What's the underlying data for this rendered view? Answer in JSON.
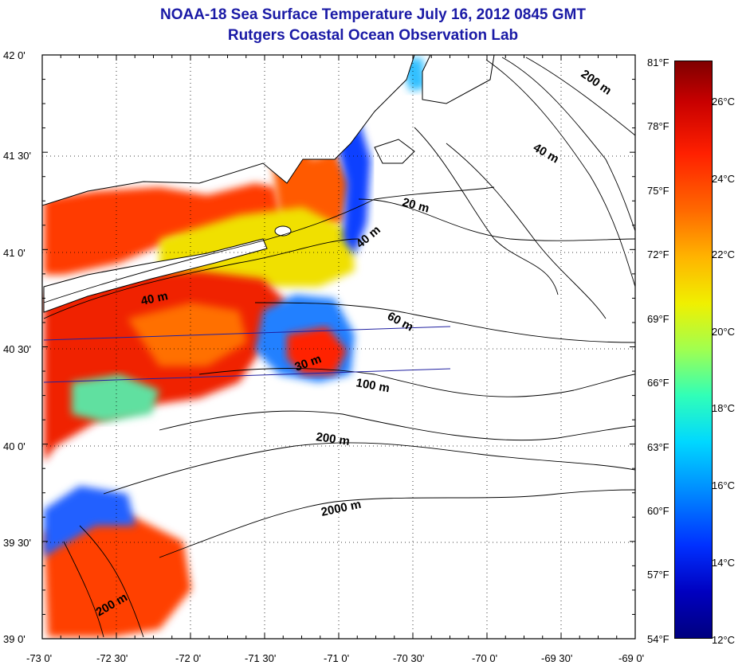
{
  "title": "NOAA-18 Sea Surface Temperature July 16, 2012 0845 GMT",
  "subtitle": "Rutgers Coastal Ocean Observation Lab",
  "lat_labels": [
    "42 0'",
    "41 30'",
    "41 0'",
    "40 30'",
    "40 0'",
    "39 30'",
    "39 0'"
  ],
  "lon_labels": [
    "-73 0'",
    "-72 30'",
    "-72 0'",
    "-71 30'",
    "-71 0'",
    "-70 30'",
    "-70 0'",
    "-69 30'",
    "-69 0'"
  ],
  "fahrenheit_labels": [
    "81°F",
    "78°F",
    "75°F",
    "72°F",
    "69°F",
    "66°F",
    "63°F",
    "60°F",
    "57°F",
    "54°F"
  ],
  "celsius_labels": [
    "26°C",
    "24°C",
    "22°C",
    "20°C",
    "18°C",
    "16°C",
    "14°C",
    "12°C"
  ],
  "contour_labels": [
    "200 m",
    "40 m",
    "20 m",
    "40 m",
    "40 m",
    "60 m",
    "30 m",
    "100 m",
    "200 m",
    "2000 m",
    "200 m"
  ],
  "extent": {
    "lon": [
      -73,
      -69
    ],
    "lat": [
      39,
      42
    ]
  },
  "colorbar": {
    "min_f": 54,
    "max_f": 81,
    "colors": [
      "#00007f",
      "#0000ff",
      "#00b0ff",
      "#40ffc0",
      "#c0ff40",
      "#ffff00",
      "#ff8000",
      "#ff0000",
      "#7f0000"
    ]
  },
  "colors": {
    "title": "#1a1aa6",
    "land": "#ffffff",
    "contour": "#000000",
    "track": "#2020a0"
  }
}
